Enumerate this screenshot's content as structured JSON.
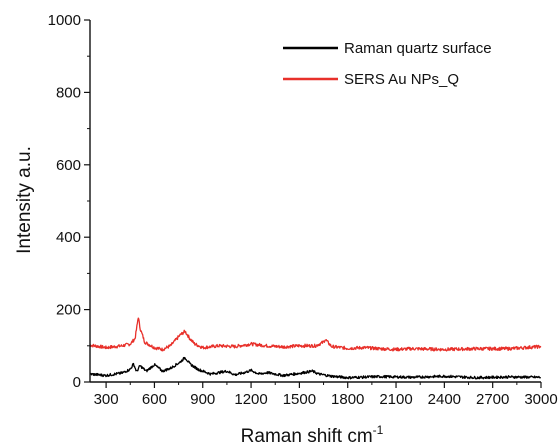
{
  "chart_data": {
    "type": "line",
    "xlabel": "Raman shift cm",
    "xlabel_superscript": "-1",
    "ylabel": "Intensity a.u.",
    "xlim": [
      200,
      3000
    ],
    "ylim": [
      0,
      1000
    ],
    "x_ticks": [
      300,
      600,
      900,
      1200,
      1500,
      1800,
      2100,
      2400,
      2700,
      3000
    ],
    "x_tick_labels": [
      "300",
      "600",
      "900",
      "1200",
      "1500",
      "1800",
      "2100",
      "2400",
      "2700",
      "3000"
    ],
    "y_ticks": [
      0,
      200,
      400,
      600,
      800,
      1000
    ],
    "y_tick_labels": [
      "0",
      "200",
      "400",
      "600",
      "800",
      "1000"
    ],
    "grid": false,
    "legend_position": "top-right",
    "series": [
      {
        "name": "Raman quartz surface",
        "color": "#000000",
        "x": [
          200,
          300,
          400,
          450,
          470,
          490,
          510,
          550,
          600,
          650,
          700,
          760,
          790,
          820,
          870,
          950,
          1050,
          1100,
          1150,
          1200,
          1250,
          1300,
          1400,
          1500,
          1580,
          1620,
          1700,
          1800,
          2000,
          2200,
          2400,
          2600,
          2800,
          3000
        ],
        "y": [
          22,
          18,
          25,
          35,
          50,
          28,
          45,
          30,
          48,
          30,
          38,
          55,
          68,
          50,
          35,
          22,
          30,
          20,
          25,
          32,
          22,
          26,
          18,
          24,
          30,
          22,
          16,
          12,
          15,
          13,
          16,
          12,
          14,
          13
        ]
      },
      {
        "name": "SERS Au NPs_Q",
        "color": "#e8302a",
        "x": [
          200,
          300,
          400,
          450,
          480,
          500,
          510,
          540,
          600,
          650,
          700,
          760,
          790,
          820,
          850,
          900,
          1000,
          1100,
          1200,
          1300,
          1400,
          1500,
          1600,
          1650,
          1660,
          1700,
          1800,
          1900,
          2000,
          2100,
          2200,
          2400,
          2600,
          2800,
          3000
        ],
        "y": [
          102,
          95,
          100,
          105,
          120,
          180,
          150,
          110,
          95,
          90,
          100,
          130,
          140,
          120,
          105,
          95,
          100,
          98,
          105,
          100,
          97,
          100,
          100,
          110,
          118,
          98,
          93,
          95,
          92,
          90,
          92,
          90,
          92,
          92,
          98
        ]
      }
    ]
  }
}
